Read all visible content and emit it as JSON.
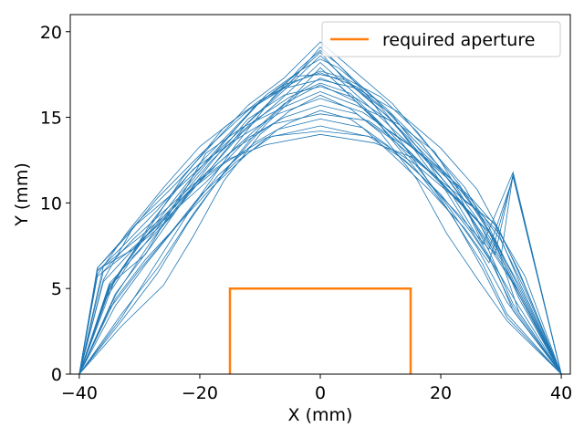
{
  "chart_data": {
    "type": "line",
    "title": "",
    "xlabel": "X (mm)",
    "ylabel": "Y (mm)",
    "xlim": [
      -41.5,
      41.5
    ],
    "ylim": [
      0,
      21
    ],
    "xticks": [
      -40,
      -20,
      0,
      20,
      40
    ],
    "yticks": [
      0,
      5,
      10,
      15,
      20
    ],
    "xtick_labels": [
      "−40",
      "−20",
      "0",
      "20",
      "40"
    ],
    "ytick_labels": [
      "0",
      "5",
      "10",
      "15",
      "20"
    ],
    "grid": false,
    "legend": {
      "placement": "top-right",
      "entries": [
        "required aperture"
      ]
    },
    "colors": {
      "trajectories": "#1f77b4",
      "aperture": "#ff7f0e"
    },
    "series": [
      {
        "name": "required aperture",
        "x": [
          -15,
          -15,
          15,
          15
        ],
        "y": [
          0,
          5,
          5,
          0
        ]
      },
      {
        "x": [
          -40,
          -37,
          -32,
          -27,
          -20,
          -12,
          -6,
          0,
          6,
          12,
          18,
          24,
          28,
          32,
          40
        ],
        "y": [
          0,
          6.2,
          8.1,
          10.3,
          12.8,
          15.4,
          16.9,
          17.6,
          16.8,
          15.1,
          12.4,
          9.8,
          7.2,
          4.1,
          0
        ]
      },
      {
        "x": [
          -40,
          -35,
          -30,
          -24,
          -18,
          -11,
          -5,
          0,
          5,
          11,
          17,
          23,
          28,
          33,
          40
        ],
        "y": [
          0,
          5.0,
          7.6,
          10.0,
          12.5,
          14.8,
          16.2,
          17.0,
          16.4,
          14.3,
          12.8,
          11.0,
          8.3,
          4.6,
          0
        ]
      },
      {
        "x": [
          -40,
          -36,
          -31,
          -25,
          -19,
          -13,
          -7,
          0,
          7,
          13,
          19,
          25,
          30,
          34,
          40
        ],
        "y": [
          0,
          4.2,
          6.9,
          9.1,
          11.7,
          14.1,
          15.9,
          18.2,
          16.0,
          14.0,
          12.1,
          10.2,
          7.8,
          4.9,
          0
        ]
      },
      {
        "x": [
          -40,
          -34,
          -28,
          -22,
          -16,
          -10,
          -4,
          0,
          4,
          10,
          16,
          22,
          27,
          32,
          40
        ],
        "y": [
          0,
          5.6,
          8.5,
          11.2,
          13.6,
          15.9,
          17.5,
          18.8,
          17.2,
          15.6,
          13.1,
          10.7,
          8.0,
          5.3,
          0
        ]
      },
      {
        "x": [
          -40,
          -37,
          -33,
          -27,
          -21,
          -14,
          -7,
          0,
          7,
          14,
          21,
          26,
          29,
          32,
          40
        ],
        "y": [
          0,
          6.0,
          7.4,
          9.6,
          12.0,
          13.7,
          15.2,
          16.1,
          15.3,
          13.6,
          11.5,
          9.1,
          7.0,
          11.7,
          0
        ]
      },
      {
        "x": [
          -40,
          -33,
          -27,
          -21,
          -15,
          -9,
          -3,
          0,
          3,
          9,
          15,
          21,
          26,
          31,
          40
        ],
        "y": [
          0,
          3.5,
          6.2,
          9.4,
          12.2,
          14.6,
          16.6,
          17.3,
          16.9,
          14.9,
          12.6,
          9.9,
          7.4,
          4.2,
          0
        ]
      },
      {
        "x": [
          -40,
          -36,
          -30,
          -24,
          -19,
          -13,
          -6,
          0,
          6,
          13,
          19,
          24,
          29,
          33,
          40
        ],
        "y": [
          0,
          6.3,
          8.0,
          9.8,
          12.9,
          14.4,
          15.6,
          16.5,
          15.7,
          14.6,
          13.0,
          10.1,
          8.8,
          6.0,
          0
        ]
      },
      {
        "x": [
          -40,
          -35,
          -29,
          -23,
          -17,
          -11,
          -5,
          0,
          5,
          11,
          17,
          23,
          27,
          32,
          40
        ],
        "y": [
          0,
          5.2,
          7.0,
          10.6,
          13.1,
          15.6,
          17.0,
          19.1,
          17.4,
          15.5,
          13.4,
          10.5,
          7.6,
          11.8,
          0
        ]
      },
      {
        "x": [
          -40,
          -34,
          -28,
          -23,
          -18,
          -12,
          -6,
          0,
          6,
          12,
          18,
          23,
          28,
          32,
          40
        ],
        "y": [
          0,
          4.6,
          7.8,
          10.1,
          12.4,
          14.9,
          16.3,
          16.8,
          16.1,
          14.7,
          12.3,
          9.5,
          6.8,
          3.9,
          0
        ]
      },
      {
        "x": [
          -40,
          -37,
          -31,
          -26,
          -20,
          -14,
          -8,
          0,
          8,
          14,
          20,
          26,
          30,
          33,
          40
        ],
        "y": [
          0,
          6.1,
          7.3,
          8.8,
          11.4,
          13.2,
          14.6,
          15.2,
          14.8,
          13.3,
          11.2,
          9.0,
          6.7,
          3.6,
          0
        ]
      },
      {
        "x": [
          -40,
          -33,
          -27,
          -22,
          -16,
          -10,
          -4,
          0,
          4,
          10,
          16,
          22,
          27,
          31,
          40
        ],
        "y": [
          0,
          3.1,
          5.9,
          8.8,
          11.8,
          14.4,
          16.4,
          17.9,
          16.6,
          14.5,
          11.9,
          9.2,
          6.1,
          3.3,
          0
        ]
      },
      {
        "x": [
          -40,
          -36,
          -30,
          -25,
          -19,
          -12,
          -6,
          0,
          6,
          12,
          19,
          25,
          29,
          33,
          40
        ],
        "y": [
          0,
          5.4,
          7.7,
          9.3,
          11.2,
          13.8,
          15.0,
          15.7,
          15.2,
          13.7,
          11.6,
          9.4,
          7.9,
          5.0,
          0
        ]
      },
      {
        "x": [
          -40,
          -35,
          -28,
          -22,
          -15,
          -9,
          -3,
          0,
          3,
          9,
          15,
          22,
          28,
          32,
          40
        ],
        "y": [
          0,
          4.9,
          8.9,
          11.6,
          14.1,
          16.3,
          17.8,
          18.4,
          17.9,
          16.1,
          13.9,
          11.3,
          8.6,
          5.5,
          0
        ]
      },
      {
        "x": [
          -40,
          -34,
          -29,
          -24,
          -18,
          -12,
          -7,
          0,
          7,
          12,
          18,
          24,
          28,
          32,
          40
        ],
        "y": [
          0,
          4.4,
          6.7,
          8.6,
          10.9,
          12.9,
          14.3,
          14.9,
          14.4,
          12.8,
          10.8,
          8.5,
          6.5,
          11.6,
          0
        ]
      },
      {
        "x": [
          -40,
          -37,
          -32,
          -26,
          -20,
          -13,
          -6,
          0,
          6,
          13,
          20,
          26,
          30,
          34,
          40
        ],
        "y": [
          0,
          5.8,
          8.3,
          10.9,
          13.3,
          15.2,
          16.7,
          17.2,
          16.7,
          15.3,
          13.2,
          10.8,
          8.2,
          5.1,
          0
        ]
      },
      {
        "x": [
          -40,
          -35,
          -30,
          -25,
          -20,
          -14,
          -8,
          0,
          8,
          14,
          20,
          25,
          29,
          32,
          40
        ],
        "y": [
          0,
          3.8,
          6.1,
          8.2,
          10.4,
          12.4,
          13.9,
          14.2,
          13.9,
          12.5,
          10.5,
          8.3,
          6.2,
          3.7,
          0
        ]
      },
      {
        "x": [
          -40,
          -36,
          -31,
          -25,
          -18,
          -11,
          -5,
          0,
          5,
          11,
          18,
          25,
          29,
          33,
          40
        ],
        "y": [
          0,
          5.5,
          8.6,
          10.4,
          12.7,
          15.0,
          16.9,
          18.6,
          17.0,
          15.1,
          12.6,
          10.3,
          8.7,
          5.4,
          0
        ]
      },
      {
        "x": [
          -40,
          -33,
          -26,
          -21,
          -16,
          -10,
          -5,
          0,
          5,
          10,
          16,
          21,
          26,
          31,
          40
        ],
        "y": [
          0,
          2.8,
          5.2,
          8.1,
          11.3,
          14.0,
          15.4,
          16.3,
          15.5,
          14.1,
          11.4,
          8.2,
          5.6,
          3.1,
          0
        ]
      },
      {
        "x": [
          -40,
          -37,
          -30,
          -24,
          -17,
          -12,
          -6,
          0,
          6,
          12,
          17,
          24,
          29,
          33,
          40
        ],
        "y": [
          0,
          6.2,
          9.0,
          11.1,
          13.8,
          15.7,
          17.3,
          19.4,
          17.6,
          15.8,
          13.7,
          10.9,
          7.7,
          4.4,
          0
        ]
      },
      {
        "x": [
          -40,
          -34,
          -29,
          -23,
          -17,
          -11,
          -5,
          0,
          5,
          11,
          17,
          23,
          28,
          32,
          40
        ],
        "y": [
          0,
          4.0,
          6.4,
          9.0,
          11.6,
          13.5,
          14.7,
          15.4,
          14.9,
          13.4,
          11.5,
          9.3,
          7.3,
          11.5,
          0
        ]
      },
      {
        "x": [
          -40,
          -35,
          -29,
          -23,
          -16,
          -10,
          -4,
          0,
          4,
          10,
          16,
          23,
          28,
          33,
          40
        ],
        "y": [
          0,
          5.1,
          8.2,
          11.4,
          14.4,
          16.0,
          17.1,
          17.7,
          17.3,
          16.2,
          14.2,
          11.1,
          8.4,
          5.2,
          0
        ]
      },
      {
        "x": [
          -40,
          -36,
          -31,
          -26,
          -21,
          -15,
          -9,
          0,
          9,
          15,
          21,
          26,
          30,
          34,
          40
        ],
        "y": [
          0,
          6.0,
          7.9,
          9.5,
          11.1,
          12.6,
          13.4,
          14.0,
          13.5,
          12.7,
          11.0,
          9.6,
          8.1,
          5.7,
          0
        ]
      },
      {
        "x": [
          -40,
          -33,
          -27,
          -21,
          -14,
          -8,
          -3,
          0,
          3,
          8,
          14,
          21,
          27,
          31,
          40
        ],
        "y": [
          0,
          3.3,
          6.6,
          9.9,
          13.4,
          16.1,
          18.0,
          18.9,
          18.1,
          16.2,
          13.3,
          9.7,
          6.4,
          3.5,
          0
        ]
      },
      {
        "x": [
          -40,
          -37,
          -32,
          -27,
          -22,
          -16,
          -9,
          0,
          9,
          16,
          22,
          27,
          30,
          32,
          40
        ],
        "y": [
          0,
          5.7,
          7.1,
          8.7,
          10.6,
          12.3,
          13.8,
          14.5,
          13.8,
          12.2,
          10.4,
          8.6,
          6.9,
          11.7,
          0
        ]
      },
      {
        "x": [
          -40,
          -34,
          -28,
          -22,
          -17,
          -11,
          -6,
          0,
          6,
          11,
          17,
          22,
          27,
          32,
          40
        ],
        "y": [
          0,
          4.7,
          7.5,
          10.5,
          12.3,
          14.2,
          15.8,
          16.9,
          15.9,
          14.3,
          12.2,
          10.4,
          7.5,
          4.5,
          0
        ]
      },
      {
        "x": [
          -40,
          -35,
          -30,
          -24,
          -18,
          -12,
          -4,
          0,
          4,
          12,
          18,
          24,
          29,
          33,
          40
        ],
        "y": [
          0,
          5.3,
          7.2,
          9.9,
          12.1,
          14.7,
          17.4,
          17.5,
          17.2,
          14.8,
          12.0,
          9.7,
          7.1,
          4.8,
          0
        ]
      }
    ]
  }
}
